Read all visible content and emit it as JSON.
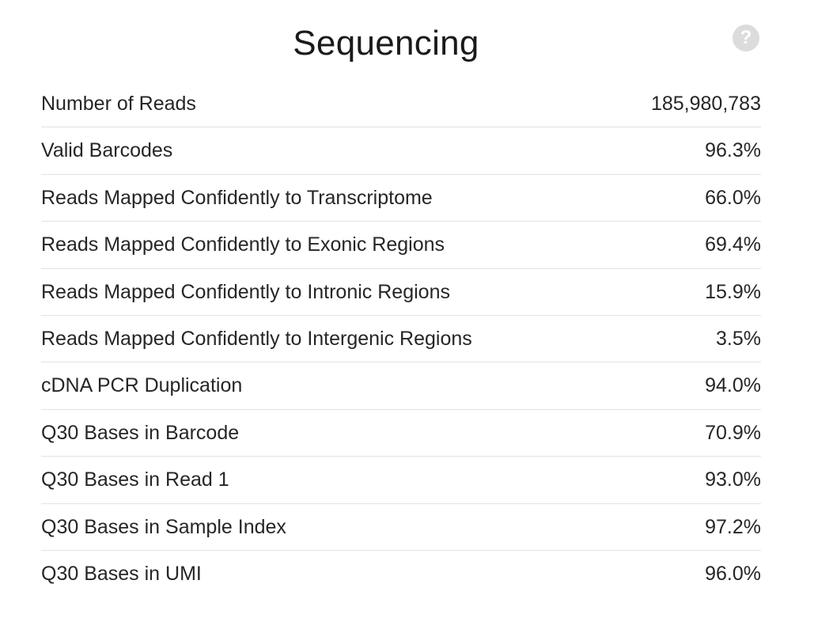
{
  "card": {
    "title": "Sequencing",
    "help_icon": "?"
  },
  "metrics": [
    {
      "label": "Number of Reads",
      "value": "185,980,783"
    },
    {
      "label": "Valid Barcodes",
      "value": "96.3%"
    },
    {
      "label": "Reads Mapped Confidently to Transcriptome",
      "value": "66.0%"
    },
    {
      "label": "Reads Mapped Confidently to Exonic Regions",
      "value": "69.4%"
    },
    {
      "label": "Reads Mapped Confidently to Intronic Regions",
      "value": "15.9%"
    },
    {
      "label": "Reads Mapped Confidently to Intergenic Regions",
      "value": "3.5%"
    },
    {
      "label": "cDNA PCR Duplication",
      "value": "94.0%"
    },
    {
      "label": "Q30 Bases in Barcode",
      "value": "70.9%"
    },
    {
      "label": "Q30 Bases in Read 1",
      "value": "93.0%"
    },
    {
      "label": "Q30 Bases in Sample Index",
      "value": "97.2%"
    },
    {
      "label": "Q30 Bases in UMI",
      "value": "96.0%"
    }
  ]
}
